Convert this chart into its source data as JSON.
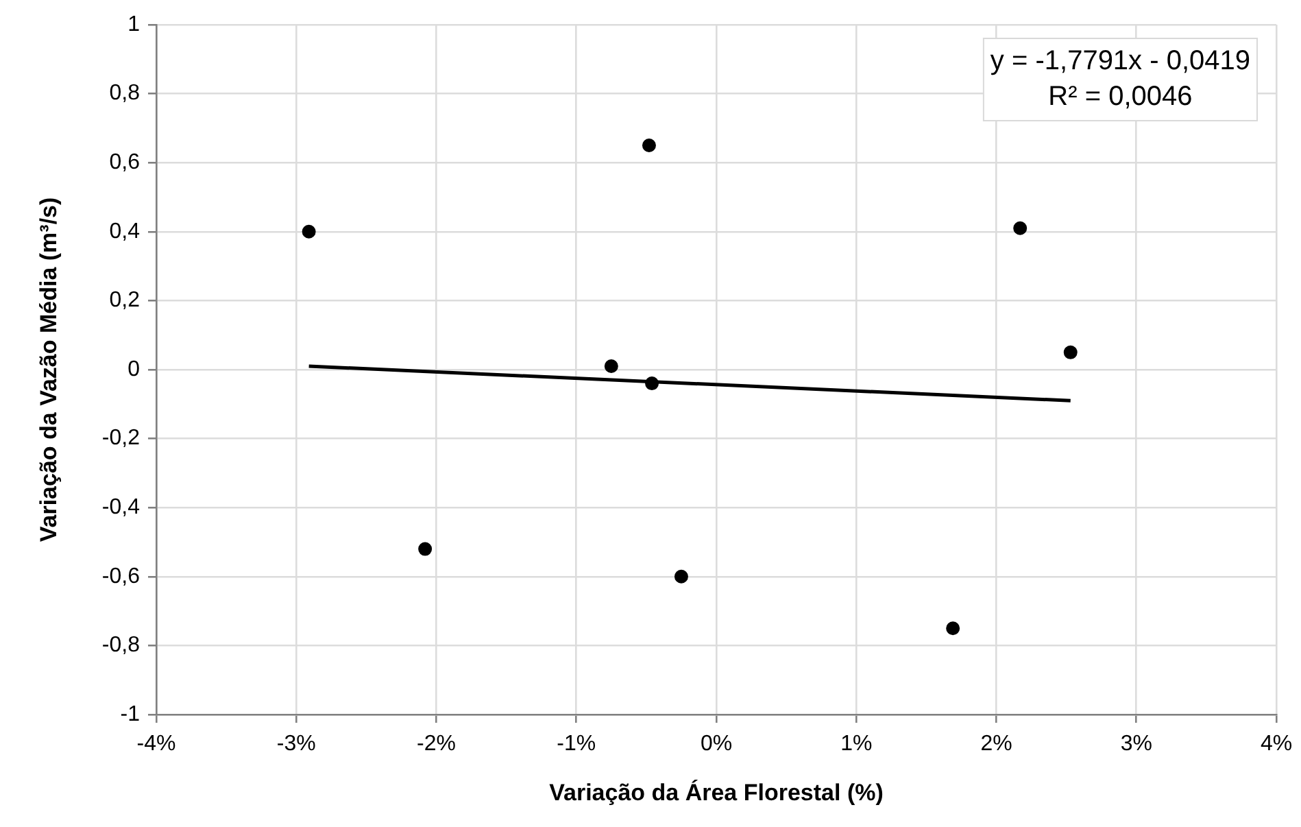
{
  "chart_data": {
    "type": "scatter",
    "xlabel": "Variação da Área Florestal (%)",
    "ylabel": "Variação da Vazão Média (m³/s)",
    "xlim": [
      -4,
      4
    ],
    "xticks": [
      {
        "value": -4,
        "label": "-4%"
      },
      {
        "value": -3,
        "label": "-3%"
      },
      {
        "value": -2,
        "label": "-2%"
      },
      {
        "value": -1,
        "label": "-1%"
      },
      {
        "value": 0,
        "label": "0%"
      },
      {
        "value": 1,
        "label": "1%"
      },
      {
        "value": 2,
        "label": "2%"
      },
      {
        "value": 3,
        "label": "3%"
      },
      {
        "value": 4,
        "label": "4%"
      }
    ],
    "ylim": [
      -1,
      1
    ],
    "yticks": [
      {
        "value": -1,
        "label": "-1"
      },
      {
        "value": -0.8,
        "label": "-0,8"
      },
      {
        "value": -0.6,
        "label": "-0,6"
      },
      {
        "value": -0.4,
        "label": "-0,4"
      },
      {
        "value": -0.2,
        "label": "-0,2"
      },
      {
        "value": 0,
        "label": "0"
      },
      {
        "value": 0.2,
        "label": "0,2"
      },
      {
        "value": 0.4,
        "label": "0,4"
      },
      {
        "value": 0.6,
        "label": "0,6"
      },
      {
        "value": 0.8,
        "label": "0,8"
      },
      {
        "value": 1,
        "label": "1"
      }
    ],
    "grid": true,
    "legend": false,
    "series": [
      {
        "marker": "circle",
        "color": "#000000",
        "x": [
          -2.91,
          -2.08,
          -0.75,
          -0.48,
          -0.46,
          -0.25,
          1.69,
          2.17,
          2.53
        ],
        "values": [
          0.4,
          -0.52,
          0.01,
          0.65,
          -0.04,
          -0.6,
          -0.75,
          0.41,
          0.05
        ]
      },
      {
        "type": "line",
        "marker": "none",
        "color": "#000000",
        "x": [
          -2.91,
          2.53
        ],
        "values": [
          0.01,
          -0.09
        ]
      }
    ],
    "annotations": [
      "y = -1,7791x - 0,0419",
      "R² = 0,0046"
    ]
  }
}
